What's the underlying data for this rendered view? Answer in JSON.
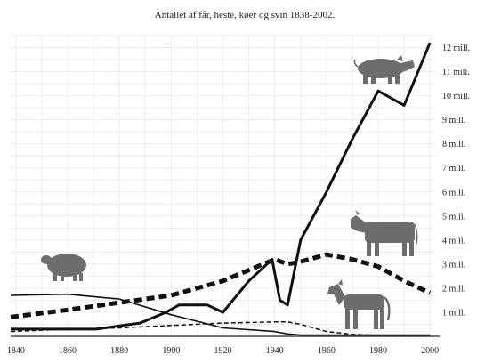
{
  "chart_data": {
    "type": "line",
    "title": "Antallet af får, heste, køer og svin 1838-2002.",
    "xlabel": "",
    "ylabel": "",
    "xlim": [
      1838,
      2002
    ],
    "ylim": [
      0,
      12.5
    ],
    "x_ticks": [
      1840,
      1860,
      1880,
      1900,
      1920,
      1940,
      1960,
      1980,
      2000
    ],
    "x_tick_labels": [
      "1840",
      "1860",
      "1880",
      "1900",
      "1920",
      "1940",
      "1960",
      "1980",
      "2000"
    ],
    "y_ticks": [
      1,
      2,
      3,
      4,
      5,
      6,
      7,
      8,
      9,
      10,
      11,
      12
    ],
    "y_tick_labels": [
      "1 mill.",
      "2 mill.",
      "3 mill.",
      "4 mill.",
      "5 mill.",
      "6 mill.",
      "7 mill.",
      "8 mill.",
      "9 mill.",
      "10 mill.",
      "11 mill.",
      "12 mill."
    ],
    "grid": true,
    "legend": "none (series identified by animal silhouettes)",
    "series": [
      {
        "icon": "pig-icon",
        "style": "thick solid",
        "color": "#111111",
        "x": [
          1838,
          1861,
          1871,
          1881,
          1888,
          1898,
          1903,
          1914,
          1920,
          1930,
          1939,
          1942,
          1945,
          1950,
          1960,
          1970,
          1980,
          1990,
          2000
        ],
        "y": [
          0.3,
          0.3,
          0.3,
          0.45,
          0.55,
          1.0,
          1.3,
          1.3,
          1.0,
          2.3,
          3.2,
          1.5,
          1.3,
          4.0,
          6.0,
          8.2,
          10.2,
          9.6,
          12.2
        ]
      },
      {
        "icon": "cow-icon",
        "style": "thick dashed",
        "color": "#111111",
        "x": [
          1838,
          1860,
          1880,
          1900,
          1920,
          1940,
          1945,
          1950,
          1960,
          1970,
          1980,
          1990,
          2000
        ],
        "y": [
          0.8,
          1.1,
          1.4,
          1.7,
          2.3,
          3.2,
          3.0,
          3.1,
          3.4,
          3.2,
          2.9,
          2.3,
          1.8
        ]
      },
      {
        "icon": "horse-icon",
        "style": "thin dashed",
        "color": "#111111",
        "x": [
          1838,
          1860,
          1880,
          1900,
          1920,
          1940,
          1945,
          1950,
          1960,
          1970,
          1980,
          2000
        ],
        "y": [
          0.2,
          0.3,
          0.35,
          0.45,
          0.55,
          0.6,
          0.6,
          0.5,
          0.2,
          0.08,
          0.04,
          0.03
        ]
      },
      {
        "icon": "sheep-icon",
        "style": "thin solid",
        "color": "#111111",
        "x": [
          1838,
          1860,
          1870,
          1880,
          1900,
          1920,
          1940,
          1945,
          1950,
          1960,
          1980,
          2000
        ],
        "y": [
          1.7,
          1.75,
          1.65,
          1.55,
          0.9,
          0.35,
          0.2,
          0.1,
          0.05,
          0.05,
          0.05,
          0.05
        ]
      }
    ]
  }
}
